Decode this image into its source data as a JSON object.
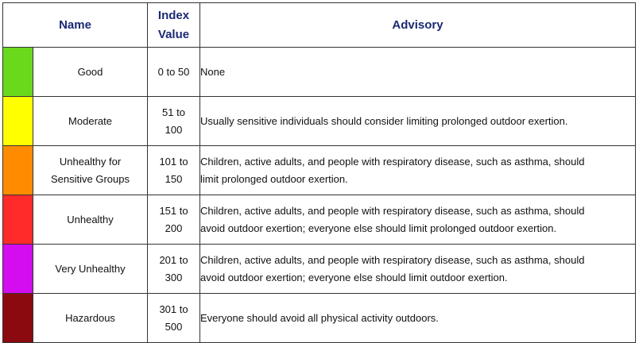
{
  "headers": {
    "name": "Name",
    "index_value": [
      "Index",
      "Value"
    ],
    "advisory": "Advisory"
  },
  "rows": [
    {
      "color": "#6ad91c",
      "name": [
        "Good"
      ],
      "range": [
        "0 to 50"
      ],
      "advisory": [
        "None"
      ]
    },
    {
      "color": "#ffff00",
      "name": [
        "Moderate"
      ],
      "range": [
        "51 to",
        "100"
      ],
      "advisory": [
        "Usually sensitive individuals should consider limiting prolonged outdoor exertion."
      ]
    },
    {
      "color": "#ff8c00",
      "name": [
        "Unhealthy for",
        "Sensitive Groups"
      ],
      "range": [
        "101 to",
        "150"
      ],
      "advisory": [
        "Children, active adults, and people with respiratory disease, such as asthma, should",
        "limit prolonged outdoor exertion."
      ]
    },
    {
      "color": "#ff2a2a",
      "name": [
        "Unhealthy"
      ],
      "range": [
        "151 to",
        "200"
      ],
      "advisory": [
        "Children, active adults, and people with respiratory disease, such as asthma, should",
        "avoid outdoor exertion; everyone else should limit prolonged outdoor exertion."
      ]
    },
    {
      "color": "#d40cf0",
      "name": [
        "Very Unhealthy"
      ],
      "range": [
        "201 to",
        "300"
      ],
      "advisory": [
        "Children, active adults, and people with respiratory disease, such as asthma, should",
        "avoid outdoor exertion; everyone else should limit outdoor exertion."
      ]
    },
    {
      "color": "#8b0a10",
      "name": [
        "Hazardous"
      ],
      "range": [
        "301 to",
        "500"
      ],
      "advisory": [
        "Everyone should avoid all physical activity outdoors."
      ]
    }
  ]
}
